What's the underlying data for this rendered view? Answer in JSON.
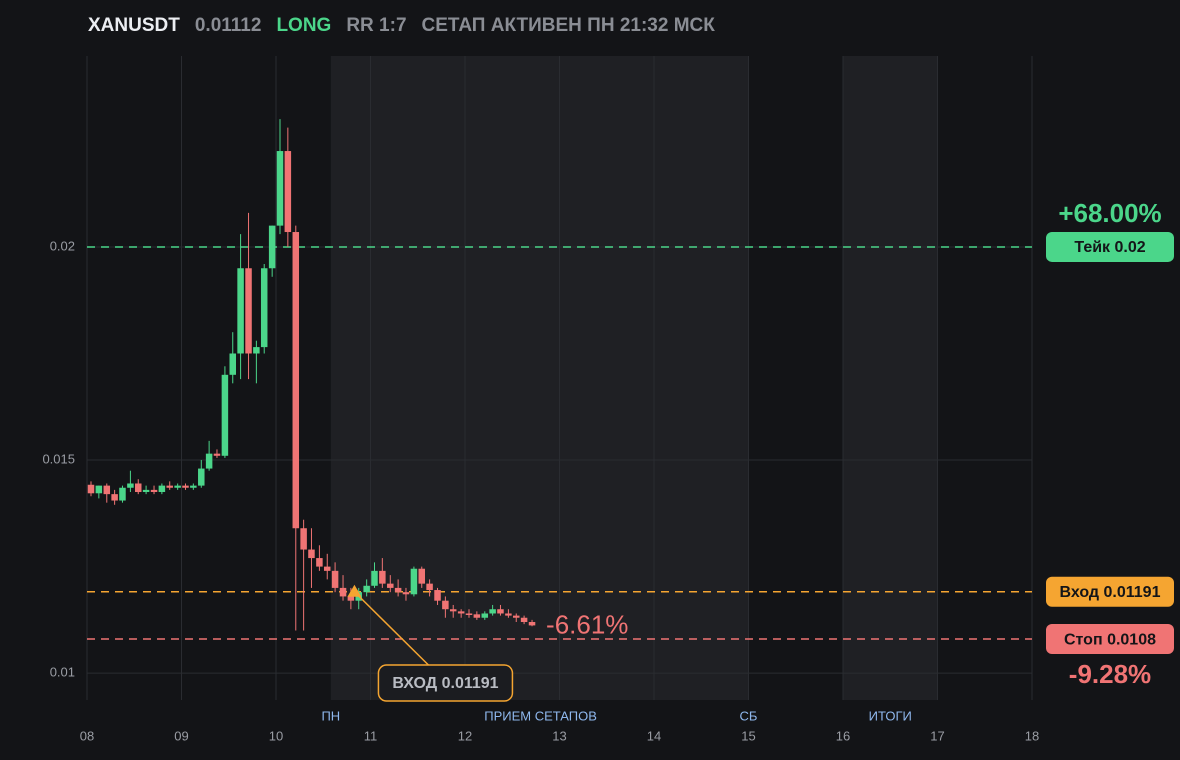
{
  "header": {
    "symbol": "XANUSDT",
    "price": "0.01112",
    "side": "LONG",
    "rr": "RR 1:7",
    "status": "СЕТАП АКТИВЕН ПН 21:32 МСК"
  },
  "chart_data": {
    "type": "candlestick",
    "xlim": [
      8,
      18
    ],
    "ylim": [
      0.00937,
      0.02448
    ],
    "xticks": [
      {
        "value": 8,
        "label": "08"
      },
      {
        "value": 9,
        "label": "09"
      },
      {
        "value": 10,
        "label": "10"
      },
      {
        "value": 11,
        "label": "11"
      },
      {
        "value": 12,
        "label": "12"
      },
      {
        "value": 13,
        "label": "13"
      },
      {
        "value": 14,
        "label": "14"
      },
      {
        "value": 15,
        "label": "15"
      },
      {
        "value": 16,
        "label": "16"
      },
      {
        "value": 17,
        "label": "17"
      },
      {
        "value": 18,
        "label": "18"
      }
    ],
    "yticks": [
      0.01,
      0.015,
      0.02
    ],
    "grid": true,
    "up_color": "#4bd68a",
    "down_color": "#f07474",
    "x": [
      8.0,
      8.083,
      8.167,
      8.25,
      8.333,
      8.417,
      8.5,
      8.583,
      8.667,
      8.75,
      8.833,
      8.917,
      9.0,
      9.083,
      9.167,
      9.25,
      9.333,
      9.417,
      9.5,
      9.583,
      9.667,
      9.75,
      9.833,
      9.917,
      10.0,
      10.083,
      10.167,
      10.25,
      10.333,
      10.417,
      10.5,
      10.583,
      10.667,
      10.75,
      10.833,
      10.917,
      11.0,
      11.083,
      11.167,
      11.25,
      11.333,
      11.417,
      11.5,
      11.583,
      11.667,
      11.75,
      11.833,
      11.917,
      12.0,
      12.083,
      12.167,
      12.25,
      12.333,
      12.417,
      12.5,
      12.583,
      12.667
    ],
    "open": [
      0.01442,
      0.01422,
      0.0144,
      0.0142,
      0.01405,
      0.01435,
      0.01445,
      0.01425,
      0.0143,
      0.01425,
      0.0144,
      0.01435,
      0.0144,
      0.01435,
      0.0144,
      0.0148,
      0.01515,
      0.0151,
      0.017,
      0.0175,
      0.0195,
      0.0175,
      0.01765,
      0.0195,
      0.0205,
      0.02225,
      0.02035,
      0.0134,
      0.0129,
      0.0127,
      0.0125,
      0.0124,
      0.012,
      0.0118,
      0.0117,
      0.0119,
      0.01205,
      0.0124,
      0.0121,
      0.012,
      0.0119,
      0.01185,
      0.01245,
      0.0121,
      0.01195,
      0.0117,
      0.0115,
      0.01145,
      0.0114,
      0.01138,
      0.0113,
      0.0114,
      0.0115,
      0.0114,
      0.01135,
      0.0113,
      0.0112
    ],
    "high": [
      0.0145,
      0.0144,
      0.01445,
      0.0143,
      0.0144,
      0.01475,
      0.01455,
      0.0144,
      0.0144,
      0.01445,
      0.0145,
      0.01445,
      0.01445,
      0.01445,
      0.015,
      0.01545,
      0.01525,
      0.0172,
      0.018,
      0.0203,
      0.0208,
      0.0178,
      0.0196,
      0.0205,
      0.023,
      0.0228,
      0.0205,
      0.0136,
      0.0134,
      0.013,
      0.0128,
      0.0126,
      0.0123,
      0.012,
      0.012,
      0.0122,
      0.0126,
      0.0127,
      0.0123,
      0.0122,
      0.012,
      0.0125,
      0.0125,
      0.0122,
      0.012,
      0.0118,
      0.0116,
      0.0115,
      0.0115,
      0.01145,
      0.01145,
      0.0116,
      0.0116,
      0.0115,
      0.0114,
      0.01135,
      0.01125
    ],
    "low": [
      0.01415,
      0.0141,
      0.014,
      0.01395,
      0.014,
      0.01425,
      0.0142,
      0.0142,
      0.0142,
      0.0142,
      0.0143,
      0.0143,
      0.0143,
      0.0143,
      0.01435,
      0.01475,
      0.01505,
      0.01505,
      0.0168,
      0.0169,
      0.0169,
      0.0168,
      0.0175,
      0.0193,
      0.0203,
      0.02,
      0.011,
      0.011,
      0.012,
      0.0124,
      0.0122,
      0.0119,
      0.0117,
      0.0115,
      0.0115,
      0.0118,
      0.012,
      0.012,
      0.0119,
      0.0118,
      0.0117,
      0.0118,
      0.012,
      0.0118,
      0.0116,
      0.0113,
      0.0113,
      0.0113,
      0.0113,
      0.01125,
      0.01125,
      0.01135,
      0.01135,
      0.0113,
      0.0112,
      0.01115,
      0.0111
    ],
    "close": [
      0.01422,
      0.0144,
      0.0142,
      0.01405,
      0.01435,
      0.01445,
      0.01425,
      0.0143,
      0.01425,
      0.0144,
      0.01435,
      0.0144,
      0.01435,
      0.0144,
      0.0148,
      0.01515,
      0.0151,
      0.017,
      0.0175,
      0.0195,
      0.0175,
      0.01765,
      0.0195,
      0.0205,
      0.02225,
      0.02035,
      0.0134,
      0.0129,
      0.0127,
      0.0125,
      0.0124,
      0.012,
      0.0118,
      0.0117,
      0.0119,
      0.01205,
      0.0124,
      0.0121,
      0.012,
      0.0119,
      0.01185,
      0.01245,
      0.0121,
      0.01195,
      0.0117,
      0.0115,
      0.01145,
      0.0114,
      0.01138,
      0.0113,
      0.0114,
      0.0115,
      0.0114,
      0.01135,
      0.0113,
      0.0112,
      0.01112
    ],
    "zones": [
      {
        "start": 10.58,
        "end": 15
      },
      {
        "start": 16,
        "end": 17
      }
    ],
    "zone_labels": [
      {
        "x": 10.58,
        "text": "ПН"
      },
      {
        "x": 12.8,
        "text": "ПРИЕМ СЕТАПОВ"
      },
      {
        "x": 15,
        "text": "СБ"
      },
      {
        "x": 16.5,
        "text": "ИТОГИ"
      }
    ],
    "levels": [
      {
        "value": 0.02,
        "label": "Тейк 0.02",
        "color": "#4bd68a",
        "change": "+68.00%",
        "change_position": "above"
      },
      {
        "value": 0.01191,
        "label": "Вход 0.01191",
        "color": "#f5a531"
      },
      {
        "value": 0.0108,
        "label": "Стоп 0.0108",
        "color": "#f07474",
        "change": "-9.28%",
        "change_position": "below"
      }
    ],
    "entry": {
      "x": 10.83,
      "value": 0.01191,
      "label": "ВХОД 0.01191",
      "color": "#f5a531"
    },
    "last_change": {
      "label": "-6.61%",
      "color": "#f07474"
    }
  }
}
